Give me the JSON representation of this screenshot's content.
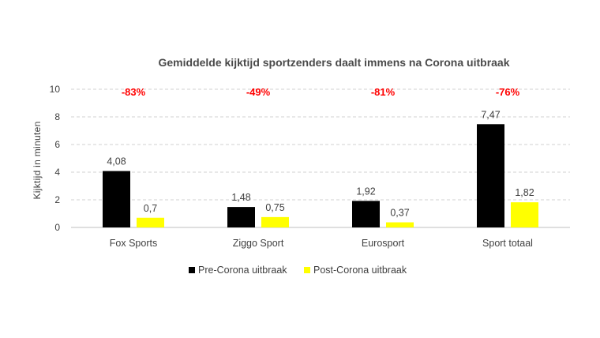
{
  "chart_data": {
    "type": "bar",
    "title": "Gemiddelde kijktijd sportzenders daalt immens na Corona uitbraak",
    "xlabel": "",
    "ylabel": "Kijktijd in minuten",
    "ylim": [
      0,
      10
    ],
    "yticks": [
      "0",
      "2",
      "4",
      "6",
      "8",
      "10"
    ],
    "grid": true,
    "legend_position": "bottom",
    "categories": [
      "Fox Sports",
      "Ziggo Sport",
      "Eurosport",
      "Sport totaal"
    ],
    "series": [
      {
        "name": "Pre-Corona uitbraak",
        "color": "#000000",
        "values": [
          4.08,
          1.48,
          1.92,
          7.47
        ],
        "labels": [
          "4,08",
          "1,48",
          "1,92",
          "7,47"
        ]
      },
      {
        "name": "Post-Corona uitbraak",
        "color": "#ffff00",
        "values": [
          0.7,
          0.75,
          0.37,
          1.82
        ],
        "labels": [
          "0,7",
          "0,75",
          "0,37",
          "1,82"
        ]
      }
    ],
    "annotations": [
      "-83%",
      "-49%",
      "-81%",
      "-76%"
    ],
    "annotation_color": "#ff0000"
  }
}
